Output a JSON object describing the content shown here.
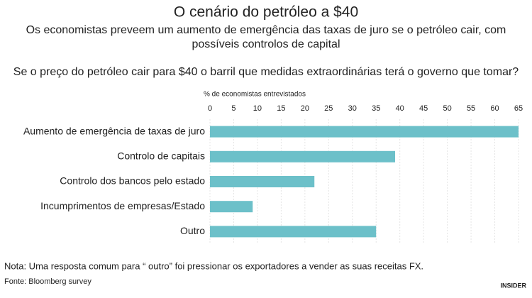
{
  "chart_data": {
    "type": "hbar",
    "title": "O cenário do petróleo a $40",
    "subtitle": [
      "Os economistas preveem um aumento de emergência das taxas de juro se o petróleo cair, com",
      "possíveis controlos de capital"
    ],
    "question": "Se o preço do petróleo cair para $40 o barril que medidas extraordinárias terá o governo que tomar?",
    "xlabel": "% de economistas entrevistados",
    "categories": [
      "Aumento de emergência de taxas de juro",
      "Controlo de capitais",
      "Controlo dos bancos pelo estado",
      "Incumprimentos de empresas/Estado",
      "Outro"
    ],
    "values": [
      65,
      39,
      22,
      9,
      35
    ],
    "color": "#6cc0c9",
    "xlim": [
      0,
      65
    ],
    "xticks": [
      0,
      5,
      10,
      15,
      20,
      25,
      30,
      35,
      40,
      45,
      50,
      55,
      60,
      65
    ],
    "grid": true,
    "note": "Nota: Uma resposta comum para “ outro” foi pressionar os exportadores a vender as suas receitas FX.",
    "source": "Fonte: Bloomberg survey",
    "logo": "INSIDER"
  }
}
